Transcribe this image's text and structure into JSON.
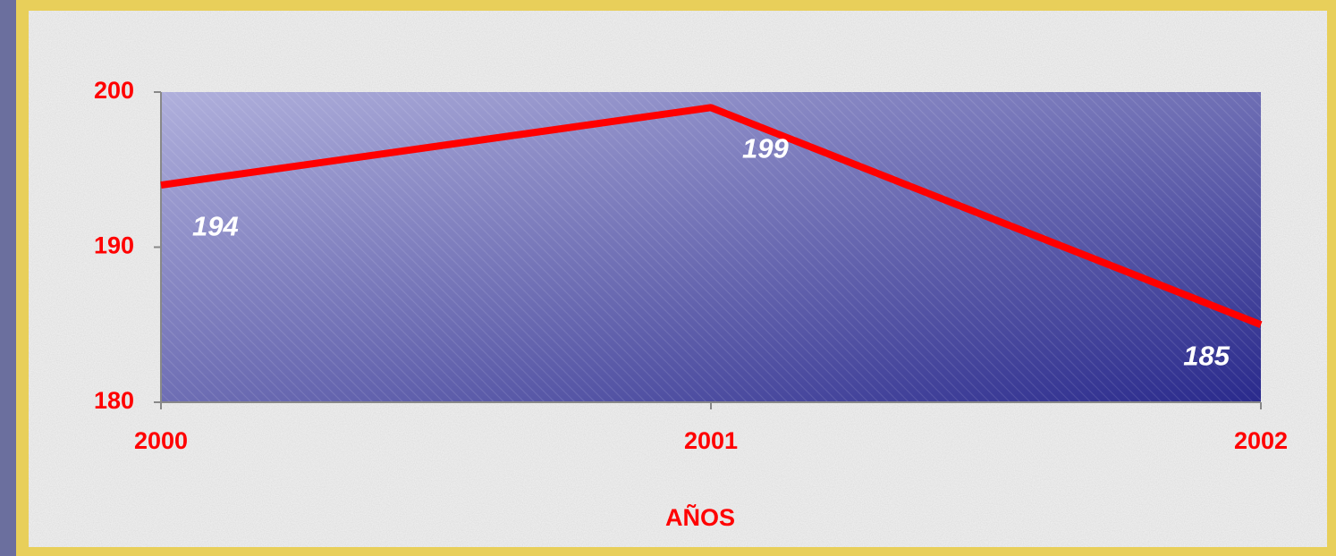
{
  "chart_data": {
    "type": "line",
    "x": [
      2000,
      2001,
      2002
    ],
    "series": [
      {
        "name": null,
        "color": "#ff0000",
        "values": [
          194,
          199,
          185
        ]
      }
    ],
    "xlabel": "AÑOS",
    "xlim": [
      2000,
      2002
    ],
    "xticks": [
      2000,
      2001,
      2002
    ],
    "ylim": [
      180,
      200
    ],
    "yticks": [
      180,
      190,
      200
    ]
  }
}
